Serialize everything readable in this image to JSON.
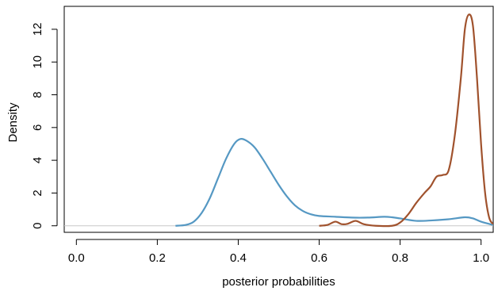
{
  "chart_data": {
    "type": "line",
    "title": "",
    "xlabel": "posterior probabilities",
    "ylabel": "Density",
    "xlim": [
      -0.03,
      1.03
    ],
    "ylim": [
      -0.4,
      13.4
    ],
    "x_ticks": [
      0.0,
      0.2,
      0.4,
      0.6,
      0.8,
      1.0
    ],
    "x_tick_labels": [
      "0.0",
      "0.2",
      "0.4",
      "0.6",
      "0.8",
      "1.0"
    ],
    "y_ticks": [
      0,
      2,
      4,
      6,
      8,
      10,
      12
    ],
    "y_tick_labels": [
      "0",
      "2",
      "4",
      "6",
      "8",
      "10",
      "12"
    ],
    "baseline": {
      "y": 0,
      "color": "#c8c8c8"
    },
    "grid": false,
    "series": [
      {
        "color": "#5598c3",
        "points": [
          [
            0.245,
            0.0
          ],
          [
            0.27,
            0.05
          ],
          [
            0.29,
            0.25
          ],
          [
            0.31,
            0.8
          ],
          [
            0.33,
            1.7
          ],
          [
            0.35,
            2.9
          ],
          [
            0.37,
            4.1
          ],
          [
            0.39,
            5.0
          ],
          [
            0.405,
            5.3
          ],
          [
            0.42,
            5.2
          ],
          [
            0.44,
            4.8
          ],
          [
            0.46,
            4.1
          ],
          [
            0.48,
            3.3
          ],
          [
            0.5,
            2.5
          ],
          [
            0.52,
            1.8
          ],
          [
            0.54,
            1.25
          ],
          [
            0.56,
            0.9
          ],
          [
            0.58,
            0.7
          ],
          [
            0.6,
            0.6
          ],
          [
            0.64,
            0.55
          ],
          [
            0.68,
            0.5
          ],
          [
            0.72,
            0.5
          ],
          [
            0.76,
            0.55
          ],
          [
            0.78,
            0.52
          ],
          [
            0.8,
            0.45
          ],
          [
            0.84,
            0.3
          ],
          [
            0.88,
            0.33
          ],
          [
            0.92,
            0.4
          ],
          [
            0.96,
            0.52
          ],
          [
            0.98,
            0.45
          ],
          [
            1.0,
            0.25
          ],
          [
            1.03,
            0.05
          ]
        ]
      },
      {
        "color": "#a0522d",
        "points": [
          [
            0.6,
            0.0
          ],
          [
            0.62,
            0.05
          ],
          [
            0.64,
            0.25
          ],
          [
            0.655,
            0.1
          ],
          [
            0.67,
            0.12
          ],
          [
            0.69,
            0.3
          ],
          [
            0.71,
            0.1
          ],
          [
            0.74,
            0.0
          ],
          [
            0.78,
            0.0
          ],
          [
            0.8,
            0.2
          ],
          [
            0.82,
            0.7
          ],
          [
            0.84,
            1.4
          ],
          [
            0.86,
            2.0
          ],
          [
            0.875,
            2.4
          ],
          [
            0.89,
            3.0
          ],
          [
            0.905,
            3.1
          ],
          [
            0.92,
            3.4
          ],
          [
            0.935,
            5.5
          ],
          [
            0.95,
            9.0
          ],
          [
            0.96,
            12.0
          ],
          [
            0.97,
            12.9
          ],
          [
            0.98,
            12.2
          ],
          [
            0.99,
            9.0
          ],
          [
            1.0,
            5.0
          ],
          [
            1.01,
            2.0
          ],
          [
            1.02,
            0.5
          ],
          [
            1.03,
            0.1
          ]
        ]
      }
    ]
  }
}
